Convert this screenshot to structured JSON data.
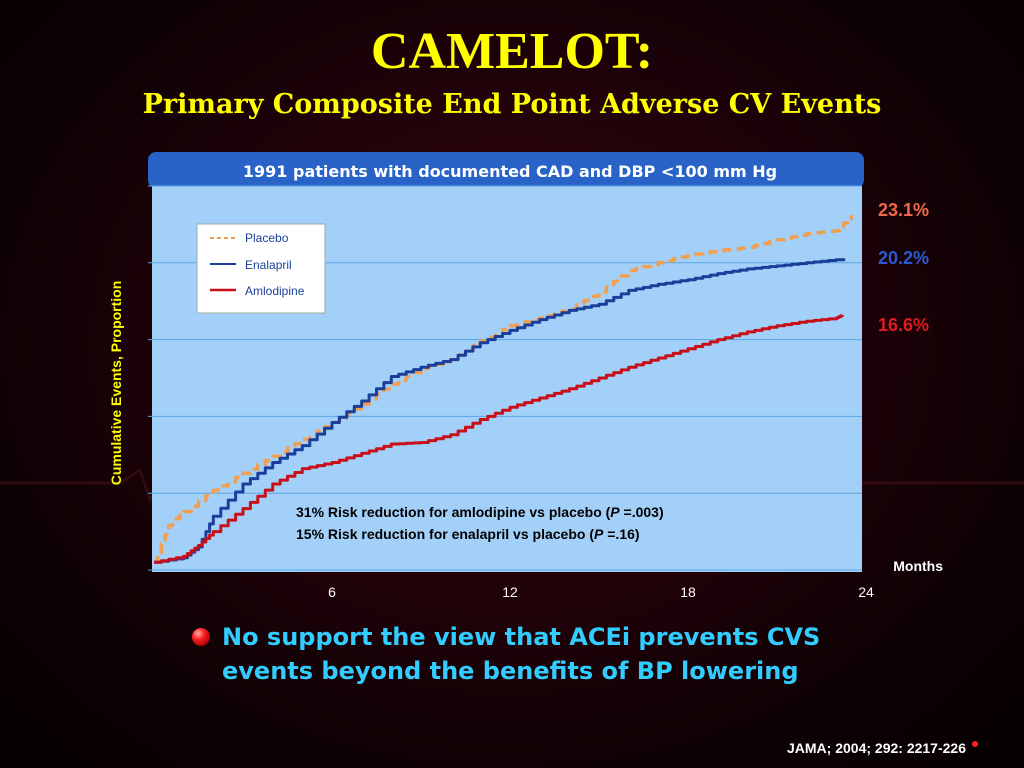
{
  "slide": {
    "title": "CAMELOT:",
    "subtitle": "Primary Composite End Point Adverse CV Events",
    "bullet": "No support the view that ACEi prevents CVS events beyond the benefits of BP lowering",
    "citation": "JAMA; 2004; 292: 2217-226"
  },
  "colors": {
    "title": "#ffff00",
    "header_bar": "#2a63c8",
    "plot_bg": "#a3d0f8",
    "placebo": "#f0a055",
    "enalapril": "#1a3f9a",
    "amlodipine": "#c8101a",
    "bullet_text": "#33ccff"
  },
  "chart_data": {
    "type": "line",
    "title": "1991 patients with documented CAD and DBP <100 mm Hg",
    "xlabel": "Months",
    "ylabel": "Cumulative Events, Proportion",
    "x_ticks": [
      "6",
      "12",
      "18",
      "24"
    ],
    "xlim": [
      0,
      24
    ],
    "ylim": [
      0,
      25
    ],
    "grid": true,
    "legend_position": "top-left",
    "series": [
      {
        "name": "Placebo",
        "style": "dashed",
        "color": "#f0a055",
        "end_label": "23.1%",
        "x": [
          0,
          0.5,
          1,
          2,
          3,
          4,
          5,
          6,
          7,
          8,
          9,
          10,
          11,
          12,
          13,
          14,
          15,
          16,
          17,
          18,
          19,
          20,
          21,
          22,
          23,
          23.5
        ],
        "y": [
          0.5,
          2.9,
          3.8,
          5.2,
          6.3,
          7.4,
          8.5,
          9.6,
          10.8,
          12.1,
          13.1,
          13.7,
          14.9,
          15.9,
          16.4,
          17.0,
          18.1,
          19.5,
          20.0,
          20.5,
          20.8,
          21.0,
          21.5,
          21.9,
          22.1,
          23.1
        ]
      },
      {
        "name": "Enalapril",
        "style": "solid",
        "color": "#1a3f9a",
        "end_label": "20.2%",
        "x": [
          0,
          1,
          1.5,
          2,
          3,
          4,
          5,
          6,
          7,
          8,
          9,
          10,
          11,
          12,
          13,
          14,
          15,
          16,
          17,
          18,
          19,
          20,
          21,
          22,
          23,
          23.3
        ],
        "y": [
          0.5,
          0.8,
          1.5,
          3.5,
          5.6,
          7.0,
          8.1,
          9.6,
          11.0,
          12.6,
          13.2,
          13.7,
          14.8,
          15.6,
          16.3,
          16.9,
          17.3,
          18.2,
          18.6,
          18.9,
          19.3,
          19.6,
          19.8,
          20.0,
          20.2,
          20.2
        ]
      },
      {
        "name": "Amlodipine",
        "style": "solid",
        "color": "#c8101a",
        "end_label": "16.6%",
        "x": [
          0,
          1,
          1.5,
          2,
          3,
          4,
          5,
          6,
          7,
          8,
          9,
          10,
          11,
          12,
          13,
          14,
          15,
          16,
          17,
          18,
          19,
          20,
          21,
          22,
          23,
          23.2
        ],
        "y": [
          0.5,
          0.9,
          1.6,
          2.5,
          4.0,
          5.6,
          6.6,
          7.0,
          7.6,
          8.2,
          8.3,
          8.8,
          9.8,
          10.6,
          11.2,
          11.8,
          12.5,
          13.2,
          13.8,
          14.4,
          15.0,
          15.5,
          15.9,
          16.2,
          16.4,
          16.6
        ]
      }
    ],
    "annotations": [
      {
        "before": "31% Risk reduction for amlodipine vs placebo (",
        "italic": "P",
        "after": " =.003)"
      },
      {
        "before": "15% Risk reduction for enalapril vs placebo (",
        "italic": "P",
        "after": " =.16)"
      }
    ]
  }
}
